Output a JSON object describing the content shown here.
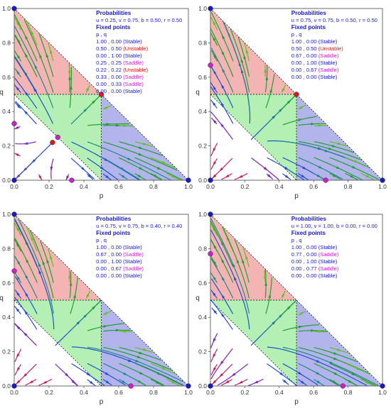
{
  "colors": {
    "region_red": "#f4b4b4",
    "region_green": "#b4f0b4",
    "region_blue": "#b4b4ec",
    "info_text": "#1a1acc",
    "stable": "#1a1acc",
    "unstable": "#dd1a1a",
    "saddle": "#cc22cc"
  },
  "chart_data": [
    {
      "type": "scatter",
      "xlabel": "p",
      "ylabel": "q",
      "xlim": [
        0,
        1
      ],
      "ylim": [
        0,
        1
      ],
      "xticks": [
        "0.0",
        "0.2",
        "0.4",
        "0.6",
        "0.8",
        "1.0"
      ],
      "yticks": [
        "0.0",
        "0.2",
        "0.4",
        "0.6",
        "0.8",
        "1.0"
      ],
      "info_title": "Probabilities",
      "params_text": "u = 0.25, v = 0.75, b = 0.50, r = 0.50",
      "fixed_title": "Fixed points",
      "pq_header": "p     ,  q",
      "fixed_points": [
        {
          "p": 1.0,
          "q": 0.0,
          "label": "1.00 , 0.00",
          "type": "Stable"
        },
        {
          "p": 0.5,
          "q": 0.5,
          "label": "0.50 , 0.50",
          "type": "Unstable"
        },
        {
          "p": 0.0,
          "q": 1.0,
          "label": "0.00 , 1.00",
          "type": "Stable"
        },
        {
          "p": 0.25,
          "q": 0.25,
          "label": "0.25 , 0.25",
          "type": "Saddle"
        },
        {
          "p": 0.22,
          "q": 0.22,
          "label": "0.22 , 0.22",
          "type": "Unstable"
        },
        {
          "p": 0.33,
          "q": 0.0,
          "label": "0.33 , 0.00",
          "type": "Saddle"
        },
        {
          "p": 0.0,
          "q": 0.33,
          "label": "0.00 , 0.33",
          "type": "Saddle"
        },
        {
          "p": 0.0,
          "q": 0.0,
          "label": "0.00 , 0.00",
          "type": "Stable"
        }
      ]
    },
    {
      "type": "scatter",
      "xlabel": "p",
      "ylabel": "q",
      "xlim": [
        0,
        1
      ],
      "ylim": [
        0,
        1
      ],
      "xticks": [
        "0.0",
        "0.2",
        "0.4",
        "0.6",
        "0.8",
        "1.0"
      ],
      "yticks": [
        "0.0",
        "0.2",
        "0.4",
        "0.6",
        "0.8",
        "1.0"
      ],
      "info_title": "Probabilities",
      "params_text": "u = 0.75, v = 0.75, b = 0.50, r = 0.50",
      "fixed_title": "Fixed points",
      "pq_header": "p     ,  q",
      "fixed_points": [
        {
          "p": 1.0,
          "q": 0.0,
          "label": "1.00 , 0.00",
          "type": "Stable"
        },
        {
          "p": 0.5,
          "q": 0.5,
          "label": "0.50 , 0.50",
          "type": "Unstable"
        },
        {
          "p": 0.67,
          "q": 0.0,
          "label": "0.67 , 0.00",
          "type": "Saddle"
        },
        {
          "p": 0.0,
          "q": 1.0,
          "label": "0.00 , 1.00",
          "type": "Stable"
        },
        {
          "p": 0.0,
          "q": 0.67,
          "label": "0.00 , 0.67",
          "type": "Saddle"
        },
        {
          "p": 0.0,
          "q": 0.0,
          "label": "0.00 , 0.00",
          "type": "Stable"
        }
      ]
    },
    {
      "type": "scatter",
      "xlabel": "p",
      "ylabel": "q",
      "xlim": [
        0,
        1
      ],
      "ylim": [
        0,
        1
      ],
      "xticks": [
        "0.0",
        "0.2",
        "0.4",
        "0.6",
        "0.8",
        "1.0"
      ],
      "yticks": [
        "0.0",
        "0.2",
        "0.4",
        "0.6",
        "0.8",
        "1.0"
      ],
      "info_title": "Probabilities",
      "params_text": "u = 0.75, v = 0.75, b = 0.40, r = 0.40",
      "fixed_title": "Fixed points",
      "pq_header": "p     ,  q",
      "fixed_points": [
        {
          "p": 1.0,
          "q": 0.0,
          "label": "1.00 , 0.00",
          "type": "Stable"
        },
        {
          "p": 0.67,
          "q": 0.0,
          "label": "0.67 , 0.00",
          "type": "Saddle"
        },
        {
          "p": 0.0,
          "q": 1.0,
          "label": "0.00 , 1.00",
          "type": "Stable"
        },
        {
          "p": 0.0,
          "q": 0.67,
          "label": "0.00 , 0.67",
          "type": "Saddle"
        },
        {
          "p": 0.0,
          "q": 0.0,
          "label": "0.00 , 0.00",
          "type": "Stable"
        }
      ]
    },
    {
      "type": "scatter",
      "xlabel": "p",
      "ylabel": "q",
      "xlim": [
        0,
        1
      ],
      "ylim": [
        0,
        1
      ],
      "xticks": [
        "0.0",
        "0.2",
        "0.4",
        "0.6",
        "0.8",
        "1.0"
      ],
      "yticks": [
        "0.0",
        "0.2",
        "0.4",
        "0.6",
        "0.8",
        "1.0"
      ],
      "info_title": "Probabilities",
      "params_text": "u = 1.00, v = 1.00, b = 0.00, r = 0.00",
      "fixed_title": "Fixed points",
      "pq_header": "p     ,  q",
      "fixed_points": [
        {
          "p": 1.0,
          "q": 0.0,
          "label": "1.00 , 0.00",
          "type": "Stable"
        },
        {
          "p": 0.77,
          "q": 0.0,
          "label": "0.77 , 0.00",
          "type": "Saddle"
        },
        {
          "p": 0.0,
          "q": 1.0,
          "label": "0.00 , 1.00",
          "type": "Stable"
        },
        {
          "p": 0.0,
          "q": 0.77,
          "label": "0.00 , 0.77",
          "type": "Saddle"
        },
        {
          "p": 0.0,
          "q": 0.0,
          "label": "0.00 , 0.00",
          "type": "Stable"
        }
      ]
    }
  ]
}
